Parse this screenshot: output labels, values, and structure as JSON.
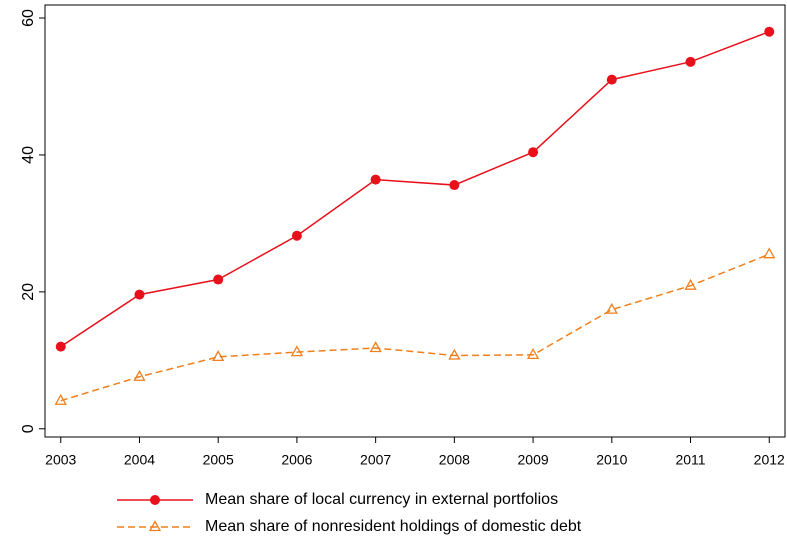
{
  "chart_data": {
    "type": "line",
    "x": [
      2003,
      2004,
      2005,
      2006,
      2007,
      2008,
      2009,
      2010,
      2011,
      2012
    ],
    "series": [
      {
        "name": "Mean share of local currency in external portfolios",
        "color": "#e8101a",
        "marker": "circle",
        "dash": false,
        "values": [
          12,
          19.6,
          21.8,
          28.2,
          36.4,
          35.6,
          40.4,
          51,
          53.6,
          58
        ]
      },
      {
        "name": "Mean share of nonresident holdings of domestic debt",
        "color": "#f07f1c",
        "marker": "triangle",
        "dash": true,
        "values": [
          4.1,
          7.6,
          10.5,
          11.2,
          11.8,
          10.7,
          10.8,
          17.4,
          20.9,
          25.5
        ]
      }
    ],
    "xlim": [
      2002.8,
      2012.2
    ],
    "xticks": [
      2003,
      2004,
      2005,
      2006,
      2007,
      2008,
      2009,
      2010,
      2011,
      2012
    ],
    "ylim": [
      -1.2,
      61.9
    ],
    "yticks": [
      0,
      20,
      40,
      60
    ],
    "grid": false
  }
}
